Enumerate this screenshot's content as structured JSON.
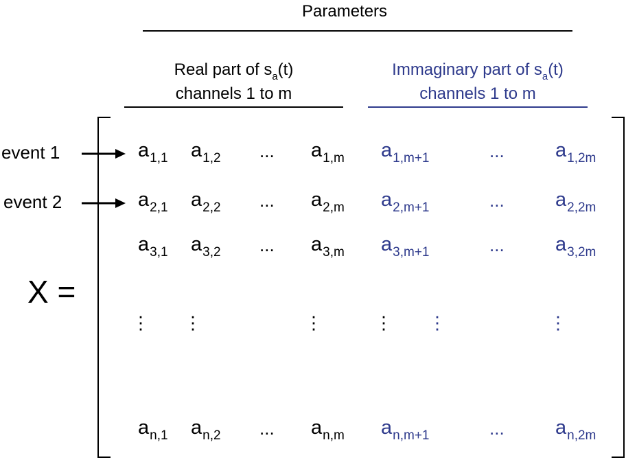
{
  "title": "Parameters",
  "header_real": {
    "line1_pre": "Real part of s",
    "line1_sub": "a",
    "line1_post": "(t)",
    "line2": "channels 1 to m"
  },
  "header_imag": {
    "line1_pre": "Immaginary part of s",
    "line1_sub": "a",
    "line1_post": "(t)",
    "line2": "channels 1 to m"
  },
  "colors": {
    "real": "#000000",
    "imaginary": "#2e3a8c"
  },
  "matrix_label": "X =",
  "events": [
    {
      "label": "event 1"
    },
    {
      "label": "event 2"
    }
  ],
  "matrix": {
    "base": "a",
    "ellipsis": "...",
    "vdots": "⋮",
    "rows": [
      {
        "subs": [
          "1,1",
          "1,2",
          "1,m",
          "1,m+1",
          "1,2m"
        ]
      },
      {
        "subs": [
          "2,1",
          "2,2",
          "2,m",
          "2,m+1",
          "2,2m"
        ]
      },
      {
        "subs": [
          "3,1",
          "3,2",
          "3,m",
          "3,m+1",
          "3,2m"
        ]
      },
      {
        "subs": [
          "n,1",
          "n,2",
          "n,m",
          "n,m+1",
          "n,2m"
        ]
      }
    ]
  }
}
